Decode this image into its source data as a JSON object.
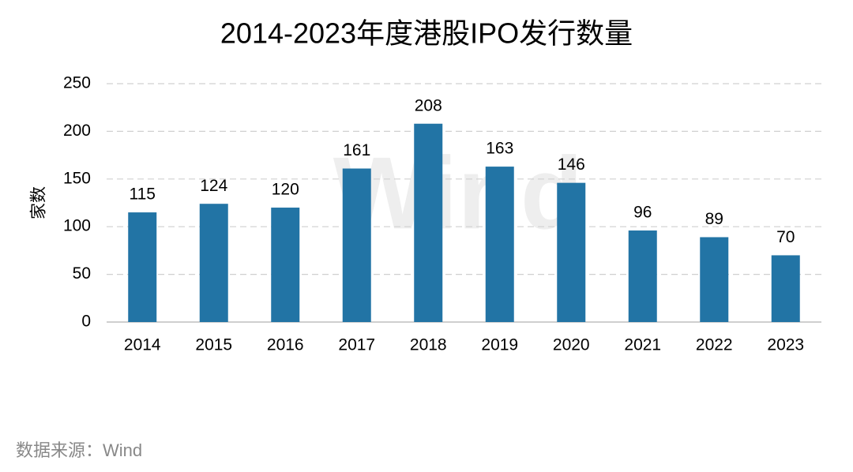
{
  "chart_data": {
    "type": "bar",
    "title": "2014-2023年度港股IPO发行数量",
    "y_label": "家数",
    "categories": [
      "2014",
      "2015",
      "2016",
      "2017",
      "2018",
      "2019",
      "2020",
      "2021",
      "2022",
      "2023"
    ],
    "values": [
      115,
      124,
      120,
      161,
      208,
      163,
      146,
      96,
      89,
      70
    ],
    "color": "#2274a5",
    "ylim": [
      0,
      250
    ],
    "yticks": [
      0,
      50,
      100,
      150,
      200,
      250
    ],
    "grid": true,
    "source": "数据来源：Wind",
    "watermark": "Wind"
  }
}
